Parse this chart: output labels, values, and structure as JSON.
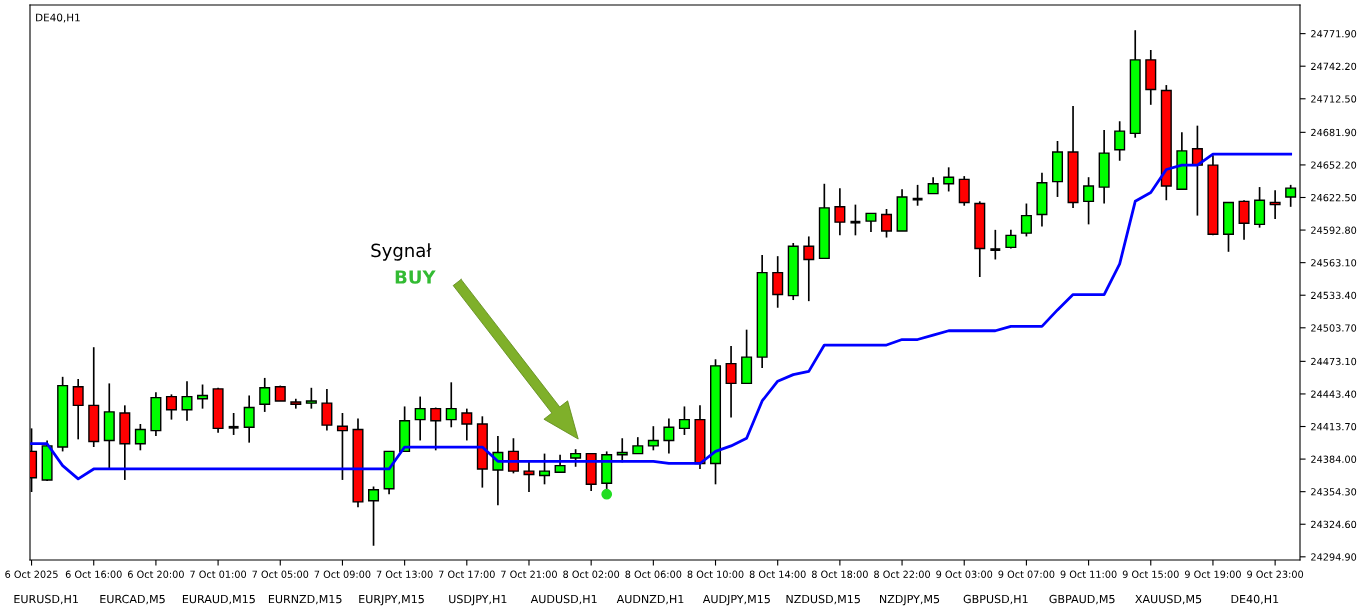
{
  "chart_data": {
    "type": "candlestick",
    "title": "DE40,H1",
    "categories": [
      "6 Oct 2025",
      null,
      null,
      null,
      "6 Oct 16:00",
      null,
      null,
      null,
      "6 Oct 20:00",
      null,
      null,
      null,
      "7 Oct 01:00",
      null,
      null,
      null,
      "7 Oct 05:00",
      null,
      null,
      null,
      "7 Oct 09:00",
      null,
      null,
      null,
      "7 Oct 13:00",
      null,
      null,
      null,
      "7 Oct 17:00",
      null,
      null,
      null,
      "7 Oct 21:00",
      null,
      null,
      null,
      "8 Oct 02:00",
      null,
      null,
      null,
      "8 Oct 06:00",
      null,
      null,
      null,
      "8 Oct 10:00",
      null,
      null,
      null,
      "8 Oct 14:00",
      null,
      null,
      null,
      "8 Oct 18:00",
      null,
      null,
      null,
      "8 Oct 22:00",
      null,
      null,
      null,
      "9 Oct 03:00",
      null,
      null,
      null,
      "9 Oct 07:00",
      null,
      null,
      null,
      "9 Oct 11:00",
      null,
      null,
      null,
      "9 Oct 15:00",
      null,
      null,
      null,
      "9 Oct 19:00",
      null,
      null,
      null,
      "9 Oct 23:00",
      null
    ],
    "ohlc": [
      [
        24391,
        24412,
        24354,
        24367
      ],
      [
        24365,
        24401,
        24364,
        24396
      ],
      [
        24395,
        24459,
        24391,
        24451
      ],
      [
        24450,
        24457,
        24402,
        24433
      ],
      [
        24433,
        24486,
        24395,
        24400
      ],
      [
        24401,
        24453,
        24375,
        24427
      ],
      [
        24426,
        24433,
        24365,
        24398
      ],
      [
        24398,
        24416,
        24392,
        24411
      ],
      [
        24410,
        24445,
        24405,
        24440
      ],
      [
        24441,
        24443,
        24420,
        24429
      ],
      [
        24429,
        24455,
        24419,
        24441
      ],
      [
        24439,
        24452,
        24430,
        24442
      ],
      [
        24448,
        24449,
        24408,
        24412
      ],
      [
        24413,
        24426,
        24406,
        24413
      ],
      [
        24413,
        24442,
        24399,
        24431
      ],
      [
        24434,
        24458,
        24427,
        24449
      ],
      [
        24450,
        24451,
        24437,
        24437
      ],
      [
        24436,
        24439,
        24430,
        24434
      ],
      [
        24435,
        24449,
        24430,
        24437
      ],
      [
        24435,
        24448,
        24410,
        24415
      ],
      [
        24414,
        24426,
        24365,
        24410
      ],
      [
        24411,
        24421,
        24340,
        24345
      ],
      [
        24346,
        24359,
        24305,
        24356
      ],
      [
        24357,
        24391,
        24352,
        24391
      ],
      [
        24391,
        24432,
        24391,
        24419
      ],
      [
        24420,
        24441,
        24401,
        24430
      ],
      [
        24430,
        24431,
        24392,
        24419
      ],
      [
        24420,
        24454,
        24413,
        24430
      ],
      [
        24426,
        24430,
        24401,
        24416
      ],
      [
        24416,
        24423,
        24358,
        24375
      ],
      [
        24374,
        24405,
        24342,
        24390
      ],
      [
        24391,
        24403,
        24371,
        24373
      ],
      [
        24373,
        24383,
        24354,
        24370
      ],
      [
        24369,
        24389,
        24361,
        24373
      ],
      [
        24372,
        24388,
        24372,
        24378
      ],
      [
        24385,
        24393,
        24377,
        24389
      ],
      [
        24389,
        24389,
        24355,
        24361
      ],
      [
        24362,
        24391,
        24355,
        24388
      ],
      [
        24388,
        24403,
        24381,
        24390
      ],
      [
        24389,
        24404,
        24389,
        24396
      ],
      [
        24396,
        24414,
        24392,
        24401
      ],
      [
        24401,
        24421,
        24389,
        24413
      ],
      [
        24412,
        24432,
        24406,
        24420
      ],
      [
        24420,
        24433,
        24375,
        24380
      ],
      [
        24380,
        24475,
        24361,
        24469
      ],
      [
        24471,
        24487,
        24422,
        24453
      ],
      [
        24453,
        24502,
        24453,
        24477
      ],
      [
        24477,
        24570,
        24467,
        24554
      ],
      [
        24554,
        24569,
        24522,
        24534
      ],
      [
        24533,
        24581,
        24529,
        24578
      ],
      [
        24578,
        24587,
        24528,
        24566
      ],
      [
        24567,
        24635,
        24567,
        24613
      ],
      [
        24614,
        24631,
        24588,
        24600
      ],
      [
        24600,
        24616,
        24588,
        24600
      ],
      [
        24601,
        24608,
        24591,
        24608
      ],
      [
        24607,
        24612,
        24586,
        24592
      ],
      [
        24592,
        24630,
        24592,
        24623
      ],
      [
        24621,
        24634,
        24615,
        24621
      ],
      [
        24626,
        24641,
        24626,
        24635
      ],
      [
        24635,
        24650,
        24628,
        24641
      ],
      [
        24639,
        24642,
        24615,
        24618
      ],
      [
        24617,
        24619,
        24550,
        24576
      ],
      [
        24575,
        24593,
        24566,
        24575
      ],
      [
        24577,
        24593,
        24576,
        24588
      ],
      [
        24590,
        24617,
        24587,
        24606
      ],
      [
        24607,
        24645,
        24596,
        24636
      ],
      [
        24637,
        24674,
        24623,
        24664
      ],
      [
        24664,
        24706,
        24613,
        24618
      ],
      [
        24619,
        24641,
        24598,
        24633
      ],
      [
        24632,
        24684,
        24617,
        24663
      ],
      [
        24666,
        24692,
        24656,
        24683
      ],
      [
        24681,
        24775,
        24677,
        24748
      ],
      [
        24748,
        24757,
        24707,
        24721
      ],
      [
        24720,
        24725,
        24620,
        24633
      ],
      [
        24630,
        24682,
        24630,
        24665
      ],
      [
        24667,
        24688,
        24606,
        24652
      ],
      [
        24652,
        24661,
        24588,
        24589
      ],
      [
        24589,
        24618,
        24573,
        24618
      ],
      [
        24619,
        24620,
        24584,
        24599
      ],
      [
        24598,
        24632,
        24595,
        24620
      ],
      [
        24618,
        24629,
        24603,
        24616
      ],
      [
        24623,
        24634,
        24614,
        24631
      ]
    ],
    "colors": [
      "#ff0000",
      "#00ff00",
      "#00ff00",
      "#ff0000",
      "#ff0000",
      "#00ff00",
      "#ff0000",
      "#00ff00",
      "#00ff00",
      "#ff0000",
      "#00ff00",
      "#00ff00",
      "#ff0000",
      "#000000",
      "#00ff00",
      "#00ff00",
      "#ff0000",
      "#ff0000",
      "#00ff00",
      "#ff0000",
      "#ff0000",
      "#ff0000",
      "#00ff00",
      "#00ff00",
      "#00ff00",
      "#00ff00",
      "#ff0000",
      "#00ff00",
      "#ff0000",
      "#ff0000",
      "#00ff00",
      "#ff0000",
      "#ff0000",
      "#00ff00",
      "#00ff00",
      "#00ff00",
      "#ff0000",
      "#00ff00",
      "#00ff00",
      "#00ff00",
      "#00ff00",
      "#00ff00",
      "#00ff00",
      "#ff0000",
      "#00ff00",
      "#ff0000",
      "#00ff00",
      "#00ff00",
      "#ff0000",
      "#00ff00",
      "#ff0000",
      "#00ff00",
      "#ff0000",
      "#000000",
      "#00ff00",
      "#ff0000",
      "#00ff00",
      "#000000",
      "#00ff00",
      "#00ff00",
      "#ff0000",
      "#ff0000",
      "#000000",
      "#00ff00",
      "#00ff00",
      "#00ff00",
      "#00ff00",
      "#ff0000",
      "#00ff00",
      "#00ff00",
      "#00ff00",
      "#00ff00",
      "#ff0000",
      "#ff0000",
      "#00ff00",
      "#ff0000",
      "#ff0000",
      "#00ff00",
      "#ff0000",
      "#00ff00",
      "#ff0000",
      "#00ff00"
    ],
    "series": [
      {
        "type": "line",
        "color": "#0000ff",
        "values": [
          24398,
          24398,
          24378,
          24366,
          24375,
          24375,
          24375,
          24375,
          24375,
          24375,
          24375,
          24375,
          24375,
          24375,
          24375,
          24375,
          24375,
          24375,
          24375,
          24375,
          24375,
          24375,
          24375,
          24375,
          24395,
          24395,
          24395,
          24395,
          24395,
          24395,
          24382,
          24382,
          24382,
          24382,
          24382,
          24382,
          24382,
          24382,
          24382,
          24382,
          24382,
          24380,
          24380,
          24380,
          24391,
          24396,
          24403,
          24437,
          24455,
          24461,
          24464,
          24488,
          24488,
          24488,
          24488,
          24488,
          24493,
          24493,
          24497,
          24501,
          24501,
          24501,
          24501,
          24505,
          24505,
          24505,
          24520,
          24534,
          24534,
          24534,
          24562,
          24619,
          24627,
          24648,
          24652,
          24652,
          24662,
          24662,
          24662,
          24662,
          24662,
          24662
        ]
      },
      {
        "type": "scatter",
        "color": "#22dd22",
        "marker": "circle",
        "values": [
          null,
          null,
          null,
          null,
          null,
          null,
          null,
          null,
          null,
          null,
          null,
          null,
          null,
          null,
          null,
          null,
          null,
          null,
          null,
          null,
          null,
          null,
          null,
          null,
          null,
          null,
          null,
          null,
          null,
          null,
          null,
          null,
          null,
          null,
          null,
          null,
          null,
          24352,
          null,
          null,
          null,
          null,
          null,
          null,
          null,
          null,
          null,
          null,
          null,
          null,
          null,
          null,
          null,
          null,
          null,
          null,
          null,
          null,
          null,
          null,
          null,
          null,
          null,
          null,
          null,
          null,
          null,
          null,
          null,
          null,
          null,
          null,
          null,
          null,
          null,
          null,
          null,
          null,
          null,
          null,
          null,
          null
        ]
      }
    ],
    "ylim": [
      24292,
      24798
    ],
    "yticks": [
      {
        "value": 24294.9,
        "label": "24294.90"
      },
      {
        "value": 24324.6,
        "label": "24324.60"
      },
      {
        "value": 24354.3,
        "label": "24354.30"
      },
      {
        "value": 24384.0,
        "label": "24384.00"
      },
      {
        "value": 24413.7,
        "label": "24413.70"
      },
      {
        "value": 24443.4,
        "label": "24443.40"
      },
      {
        "value": 24473.1,
        "label": "24473.10"
      },
      {
        "value": 24503.7,
        "label": "24503.70"
      },
      {
        "value": 24533.4,
        "label": "24533.40"
      },
      {
        "value": 24563.1,
        "label": "24563.10"
      },
      {
        "value": 24592.8,
        "label": "24592.80"
      },
      {
        "value": 24622.5,
        "label": "24622.50"
      },
      {
        "value": 24652.2,
        "label": "24652.20"
      },
      {
        "value": 24681.9,
        "label": "24681.90"
      },
      {
        "value": 24712.5,
        "label": "24712.50"
      },
      {
        "value": 24742.2,
        "label": "24742.20"
      },
      {
        "value": 24771.9,
        "label": "24771.90"
      }
    ],
    "annotations": [
      "Sygnał",
      "BUY",
      "EURUSD,H1",
      "EURCAD,M5",
      "EURAUD,M15",
      "EURNZD,M15",
      "EURJPY,M15",
      "USDJPY,H1",
      "AUDUSD,H1",
      "AUDNZD,H1",
      "AUDJPY,M15",
      "NZDUSD,M15",
      "NZDJPY,M5",
      "GBPUSD,H1",
      "GBPAUD,M5",
      "XAUUSD,M5",
      "DE40,H1"
    ],
    "grid": false,
    "legend": false
  }
}
